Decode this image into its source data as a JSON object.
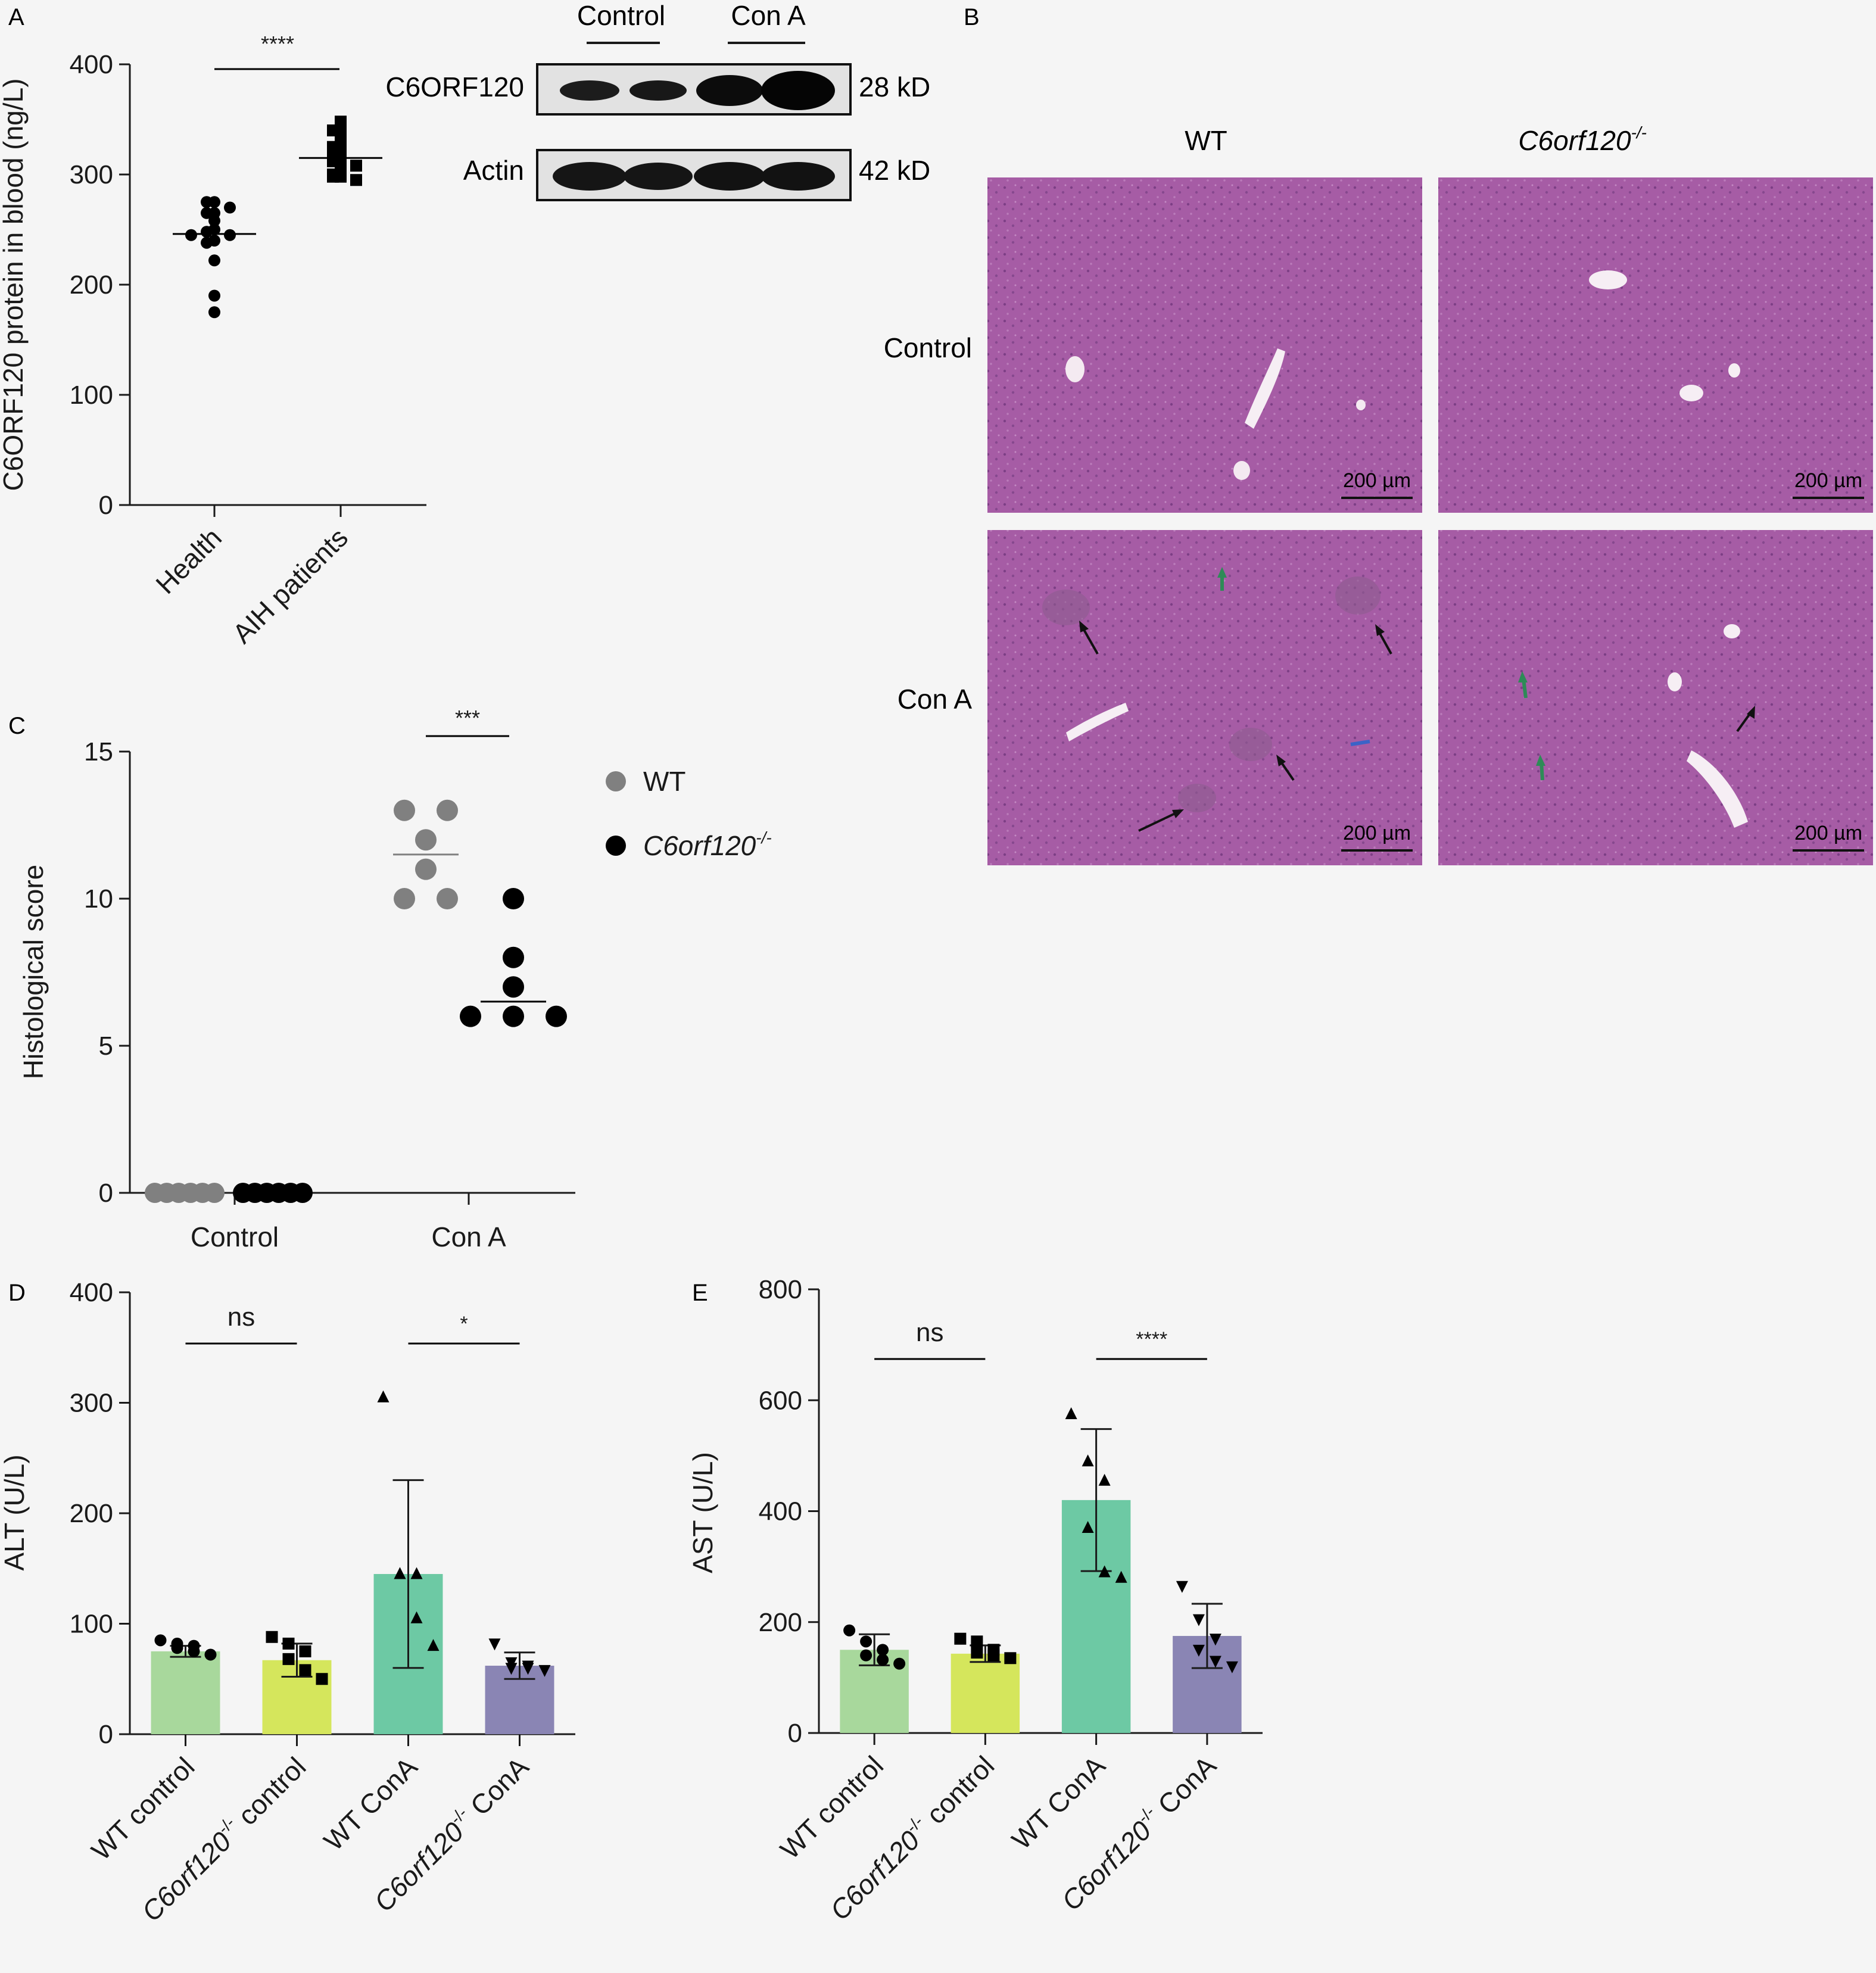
{
  "panel_letters": {
    "a": "A",
    "b": "B",
    "c": "C",
    "d": "D",
    "e": "E"
  },
  "colors": {
    "wt_control": "#a8d89c",
    "ko_control": "#d5e65c",
    "wt_cona": "#6dc9a4",
    "ko_cona": "#8a85b4",
    "dot_wt": "#808080",
    "dot_ko": "#000000",
    "he_stain": "#a65ca5",
    "arrow_black": "#111111",
    "arrow_green": "#2e8b57",
    "arrow_blue": "#3b63c7"
  },
  "western_blot": {
    "groups": [
      "Control",
      "Con A"
    ],
    "bands": [
      {
        "label": "C6ORF120",
        "size": "28 kD"
      },
      {
        "label": "Actin",
        "size": "42 kD"
      }
    ]
  },
  "histology": {
    "columns": [
      "WT",
      "C6orf120"
    ],
    "column_superscript": "-/-",
    "rows": [
      "Control",
      "Con A"
    ],
    "scale_bar": "200 µm",
    "images": [
      {
        "row": "Control",
        "col": "WT",
        "stain": "H&E"
      },
      {
        "row": "Control",
        "col": "C6orf120-/-",
        "stain": "H&E"
      },
      {
        "row": "Con A",
        "col": "WT",
        "stain": "H&E"
      },
      {
        "row": "Con A",
        "col": "C6orf120-/-",
        "stain": "H&E"
      }
    ]
  },
  "chart_data": [
    {
      "panel": "A",
      "type": "scatter",
      "ylabel": "C6ORF120 protein in blood (ng/L)",
      "categories": [
        "Health",
        "AIH patients"
      ],
      "ylim": [
        0,
        400
      ],
      "yticks": [
        "0",
        "100",
        "200",
        "300",
        "400"
      ],
      "series": [
        {
          "values": [
            275,
            275,
            270,
            265,
            265,
            258,
            250,
            248,
            245,
            245,
            240,
            238,
            222,
            190,
            175
          ],
          "mean": 246,
          "marker": "circle"
        },
        {
          "values": [
            348,
            340,
            340,
            332,
            330,
            325,
            320,
            318,
            315,
            312,
            308,
            305,
            300,
            298,
            298,
            295
          ],
          "mean": 315,
          "marker": "square"
        }
      ],
      "significance": [
        {
          "between": [
            0,
            1
          ],
          "label": "****"
        }
      ]
    },
    {
      "panel": "C",
      "type": "scatter",
      "ylabel": "Histological score",
      "categories": [
        "Control",
        "Con A"
      ],
      "ylim": [
        0,
        15
      ],
      "yticks": [
        "0",
        "5",
        "10",
        "15"
      ],
      "legend": {
        "position": "right",
        "entries": [
          "WT",
          "C6orf120"
        ],
        "superscript": "-/-"
      },
      "series": [
        {
          "name": "WT",
          "control": [
            0,
            0,
            0,
            0,
            0,
            0
          ],
          "cona": [
            13,
            13,
            12,
            11,
            10,
            10
          ],
          "cona_mean": 11.5
        },
        {
          "name": "C6orf120-/-",
          "control": [
            0,
            0,
            0,
            0,
            0,
            0
          ],
          "cona": [
            10,
            8,
            7,
            6,
            6,
            6
          ],
          "cona_mean": 6.5
        }
      ],
      "significance": [
        {
          "group": "Con A",
          "label": "***"
        }
      ]
    },
    {
      "panel": "D",
      "type": "bar",
      "ylabel": "ALT (U/L)",
      "categories": [
        "WT control",
        "C6orf120-/- control",
        "WT ConA",
        "C6orf120-/- ConA"
      ],
      "ylim": [
        0,
        400
      ],
      "yticks": [
        "0",
        "100",
        "200",
        "300",
        "400"
      ],
      "values": [
        75,
        67,
        145,
        62
      ],
      "errors": [
        5,
        15,
        85,
        12
      ],
      "points": [
        [
          85,
          82,
          80,
          78,
          75,
          72
        ],
        [
          88,
          82,
          75,
          68,
          58,
          50
        ],
        [
          305,
          145,
          145,
          145,
          105,
          80
        ],
        [
          82,
          65,
          62,
          60,
          60,
          58
        ]
      ],
      "markers": [
        "circle",
        "square",
        "triangle-up",
        "triangle-down"
      ],
      "significance": [
        {
          "between": [
            0,
            1
          ],
          "label": "ns"
        },
        {
          "between": [
            2,
            3
          ],
          "label": "*"
        }
      ]
    },
    {
      "panel": "E",
      "type": "bar",
      "ylabel": "AST (U/L)",
      "categories": [
        "WT control",
        "C6orf120-/- control",
        "WT ConA",
        "C6orf120-/- ConA"
      ],
      "ylim": [
        0,
        800
      ],
      "yticks": [
        "0",
        "200",
        "400",
        "600",
        "800"
      ],
      "values": [
        150,
        143,
        420,
        175
      ],
      "errors": [
        28,
        15,
        128,
        58
      ],
      "points": [
        [
          185,
          165,
          150,
          140,
          132,
          125
        ],
        [
          170,
          165,
          150,
          145,
          140,
          135
        ],
        [
          575,
          490,
          455,
          370,
          290,
          280
        ],
        [
          265,
          205,
          170,
          150,
          130,
          120
        ]
      ],
      "markers": [
        "circle",
        "square",
        "triangle-up",
        "triangle-down"
      ],
      "significance": [
        {
          "between": [
            0,
            1
          ],
          "label": "ns"
        },
        {
          "between": [
            2,
            3
          ],
          "label": "****"
        }
      ]
    }
  ]
}
